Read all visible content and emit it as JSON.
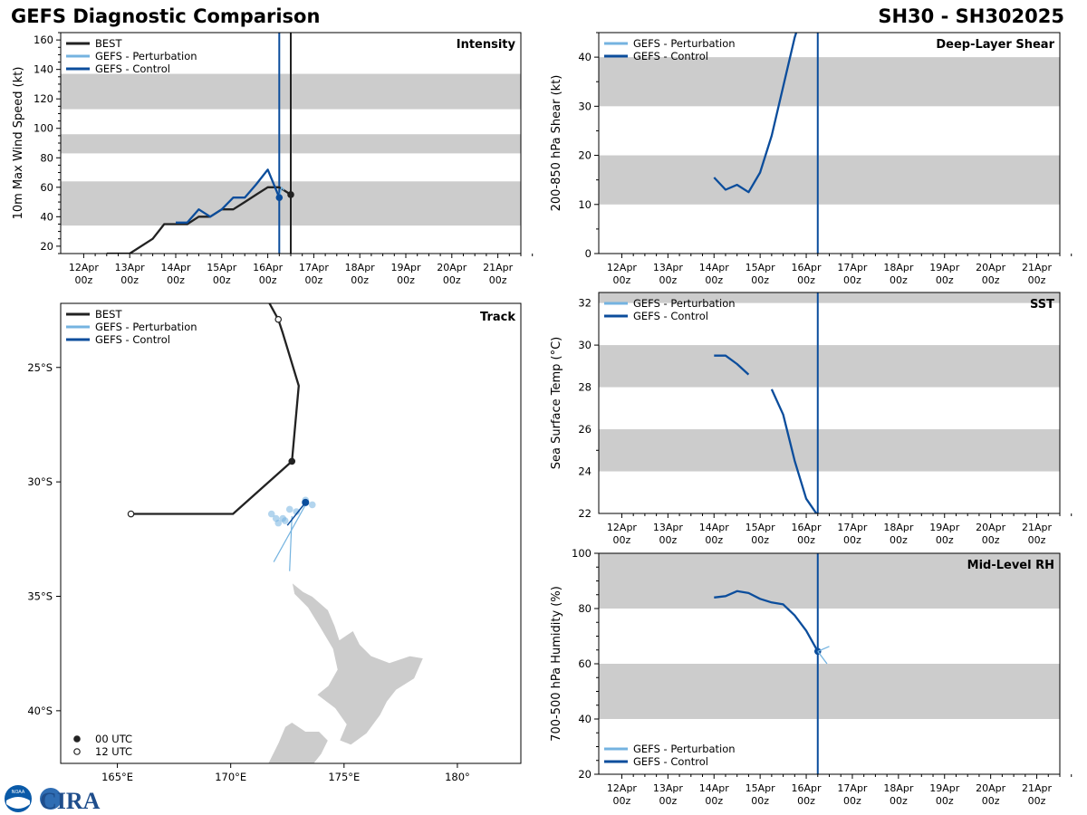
{
  "header": {
    "title": "GEFS Diagnostic Comparison",
    "storm": "SH30 - SH302025"
  },
  "logo": {
    "text": "CIRA",
    "seal_text": "NOAA"
  },
  "colors": {
    "best": "#222222",
    "perturbation": "#74b3e0",
    "control": "#0b4d9c",
    "band": "#cccccc",
    "land": "#cccccc"
  },
  "time_axis": {
    "ticks": [
      "12Apr|00z",
      "13Apr|00z",
      "14Apr|00z",
      "15Apr|00z",
      "16Apr|00z",
      "17Apr|00z",
      "18Apr|00z",
      "19Apr|00z",
      "20Apr|00z",
      "21Apr|00z"
    ],
    "range_days": [
      11.5,
      21.5
    ]
  },
  "chart_data": [
    {
      "type": "line",
      "id": "intensity",
      "title": "Intensity",
      "ylabel": "10m Max Wind Speed (kt)",
      "ylim": [
        15,
        165
      ],
      "yticks": [
        20,
        40,
        60,
        80,
        100,
        120,
        140,
        160
      ],
      "bands": [
        [
          34,
          64
        ],
        [
          83,
          96
        ],
        [
          113,
          137
        ]
      ],
      "legend": [
        "BEST",
        "GEFS - Perturbation",
        "GEFS - Control"
      ],
      "vlines": [
        {
          "x": 16.25,
          "series": "control"
        },
        {
          "x": 16.5,
          "series": "best"
        }
      ],
      "series": [
        {
          "name": "BEST",
          "key": "best",
          "x": [
            12.5,
            13,
            13.5,
            13.75,
            14,
            14.25,
            14.5,
            14.75,
            15,
            15.25,
            15.5,
            15.75,
            16,
            16.25,
            16.5
          ],
          "y": [
            15,
            15,
            25,
            35,
            35,
            35,
            40,
            40,
            45,
            45,
            50,
            55,
            60,
            60,
            55
          ],
          "end_marker": {
            "x": 16.5,
            "y": 55
          }
        },
        {
          "name": "GEFS - Perturbation",
          "key": "perturbation",
          "x": [
            16.25,
            16.3,
            16.35
          ],
          "y": [
            53,
            60,
            58
          ]
        },
        {
          "name": "GEFS - Control",
          "key": "control",
          "x": [
            14,
            14.25,
            14.5,
            14.75,
            15,
            15.25,
            15.5,
            15.75,
            16,
            16.25
          ],
          "y": [
            36,
            36,
            45,
            40,
            45,
            53,
            53,
            62,
            72,
            53
          ],
          "end_marker": {
            "x": 16.25,
            "y": 53
          }
        }
      ]
    },
    {
      "type": "line",
      "id": "shear",
      "title": "Deep-Layer Shear",
      "ylabel": "200-850 hPa Shear (kt)",
      "ylim": [
        0,
        45
      ],
      "yticks": [
        0,
        10,
        20,
        30,
        40
      ],
      "bands": [
        [
          10,
          20
        ],
        [
          30,
          40
        ]
      ],
      "legend": [
        "GEFS - Perturbation",
        "GEFS - Control"
      ],
      "vlines": [
        {
          "x": 16.25,
          "series": "control"
        }
      ],
      "series": [
        {
          "name": "GEFS - Control",
          "key": "control",
          "x": [
            14,
            14.25,
            14.5,
            14.75,
            15,
            15.25,
            15.5,
            15.75,
            15.85
          ],
          "y": [
            15.5,
            13,
            14,
            12.5,
            16.5,
            24,
            34,
            44,
            47
          ]
        }
      ]
    },
    {
      "type": "map",
      "id": "track",
      "title": "Track",
      "lon_range": [
        162.5,
        182.8
      ],
      "lat_range": [
        -42.3,
        -22.2
      ],
      "lon_ticks": [
        {
          "v": 165,
          "label": "165°E"
        },
        {
          "v": 170,
          "label": "170°E"
        },
        {
          "v": 175,
          "label": "175°E"
        },
        {
          "v": 180,
          "label": "180°"
        }
      ],
      "lat_ticks": [
        {
          "v": -25,
          "label": "25°S"
        },
        {
          "v": -30,
          "label": "30°S"
        },
        {
          "v": -35,
          "label": "35°S"
        },
        {
          "v": -40,
          "label": "40°S"
        }
      ],
      "legend": [
        "BEST",
        "GEFS - Perturbation",
        "GEFS - Control"
      ],
      "marker_legend": [
        "00 UTC",
        "12 UTC"
      ],
      "best_track": [
        {
          "lon": 171.6,
          "lat": -22.0
        },
        {
          "lon": 172.1,
          "lat": -22.9,
          "marker": "12"
        },
        {
          "lon": 172.3,
          "lat": -23.5
        },
        {
          "lon": 173.0,
          "lat": -25.8
        },
        {
          "lon": 172.7,
          "lat": -29.1,
          "marker": "00"
        },
        {
          "lon": 170.1,
          "lat": -31.4
        },
        {
          "lon": 165.6,
          "lat": -31.4,
          "marker": "12"
        }
      ],
      "control_track": [
        {
          "lon": 173.3,
          "lat": -30.9
        },
        {
          "lon": 172.5,
          "lat": -31.9
        }
      ],
      "perturbation_tracks": [
        [
          {
            "lon": 173.3,
            "lat": -31.0
          },
          {
            "lon": 171.9,
            "lat": -33.5
          }
        ],
        [
          {
            "lon": 172.7,
            "lat": -31.5
          },
          {
            "lon": 172.6,
            "lat": -33.9
          }
        ]
      ],
      "perturbation_points": [
        {
          "lon": 171.8,
          "lat": -31.4
        },
        {
          "lon": 172.0,
          "lat": -31.6
        },
        {
          "lon": 172.3,
          "lat": -31.6
        },
        {
          "lon": 172.6,
          "lat": -31.2
        },
        {
          "lon": 172.9,
          "lat": -31.3
        },
        {
          "lon": 173.3,
          "lat": -30.8
        },
        {
          "lon": 173.6,
          "lat": -31.0
        },
        {
          "lon": 172.4,
          "lat": -31.7
        },
        {
          "lon": 172.1,
          "lat": -31.8
        }
      ],
      "control_point": {
        "lon": 173.3,
        "lat": -30.9
      },
      "land": [
        [
          [
            172.7,
            -34.4
          ],
          [
            173.2,
            -34.8
          ],
          [
            173.6,
            -35.0
          ],
          [
            174.3,
            -35.6
          ],
          [
            174.6,
            -36.3
          ],
          [
            174.8,
            -36.9
          ],
          [
            175.4,
            -36.5
          ],
          [
            175.7,
            -37.1
          ],
          [
            176.2,
            -37.6
          ],
          [
            177.0,
            -37.9
          ],
          [
            177.9,
            -37.6
          ],
          [
            178.5,
            -37.7
          ],
          [
            178.1,
            -38.6
          ],
          [
            177.3,
            -39.1
          ],
          [
            176.9,
            -39.6
          ],
          [
            176.6,
            -40.2
          ],
          [
            176.0,
            -41.0
          ],
          [
            175.3,
            -41.5
          ],
          [
            174.8,
            -41.3
          ],
          [
            175.1,
            -40.6
          ],
          [
            174.6,
            -39.9
          ],
          [
            173.8,
            -39.3
          ],
          [
            174.3,
            -38.9
          ],
          [
            174.7,
            -38.2
          ],
          [
            174.5,
            -37.3
          ],
          [
            173.9,
            -36.3
          ],
          [
            173.4,
            -35.5
          ],
          [
            172.8,
            -34.9
          ]
        ],
        [
          [
            172.7,
            -40.5
          ],
          [
            173.3,
            -40.9
          ],
          [
            173.9,
            -40.9
          ],
          [
            174.3,
            -41.3
          ],
          [
            174.0,
            -41.9
          ],
          [
            173.6,
            -42.4
          ],
          [
            172.5,
            -42.4
          ],
          [
            171.6,
            -42.4
          ],
          [
            172.1,
            -41.4
          ],
          [
            172.4,
            -40.7
          ]
        ]
      ]
    },
    {
      "type": "line",
      "id": "sst",
      "title": "SST",
      "ylabel": "Sea Surface Temp (°C)",
      "ylim": [
        22,
        32.5
      ],
      "yticks": [
        22,
        24,
        26,
        28,
        30,
        32
      ],
      "bands": [
        [
          24,
          26
        ],
        [
          28,
          30
        ],
        [
          32,
          34
        ]
      ],
      "legend": [
        "GEFS - Perturbation",
        "GEFS - Control"
      ],
      "vlines": [
        {
          "x": 16.25,
          "series": "control"
        }
      ],
      "series": [
        {
          "name": "GEFS - Control",
          "key": "control",
          "x": [
            14,
            14.25,
            14.5,
            14.75
          ],
          "y": [
            29.5,
            29.5,
            29.1,
            28.6
          ]
        },
        {
          "name": "GEFS - Control",
          "key": "control",
          "x": [
            15.25,
            15.5,
            15.75,
            16,
            16.25
          ],
          "y": [
            27.9,
            26.7,
            24.5,
            22.7,
            21.9
          ]
        }
      ]
    },
    {
      "type": "line",
      "id": "rh",
      "title": "Mid-Level RH",
      "ylabel": "700-500 hPa Humidity (%)",
      "ylim": [
        20,
        100
      ],
      "yticks": [
        20,
        40,
        60,
        80,
        100
      ],
      "bands": [
        [
          40,
          60
        ],
        [
          80,
          100
        ]
      ],
      "legend": [
        "GEFS - Perturbation",
        "GEFS - Control"
      ],
      "vlines": [
        {
          "x": 16.25,
          "series": "control"
        }
      ],
      "series": [
        {
          "name": "GEFS - Control",
          "key": "control",
          "x": [
            14,
            14.25,
            14.5,
            14.75,
            15,
            15.25,
            15.5,
            15.75,
            16,
            16.25
          ],
          "y": [
            84,
            84.5,
            86.3,
            85.6,
            83.5,
            82.2,
            81.5,
            77.5,
            72,
            64.5
          ],
          "end_marker": {
            "x": 16.25,
            "y": 64.5
          }
        },
        {
          "name": "GEFS - Perturbation",
          "key": "perturbation",
          "x": [
            16.25,
            16.5
          ],
          "y": [
            64.5,
            66.3
          ]
        },
        {
          "name": "GEFS - Perturbation",
          "key": "perturbation",
          "x": [
            16.25,
            16.45
          ],
          "y": [
            64.5,
            60
          ]
        }
      ]
    }
  ]
}
